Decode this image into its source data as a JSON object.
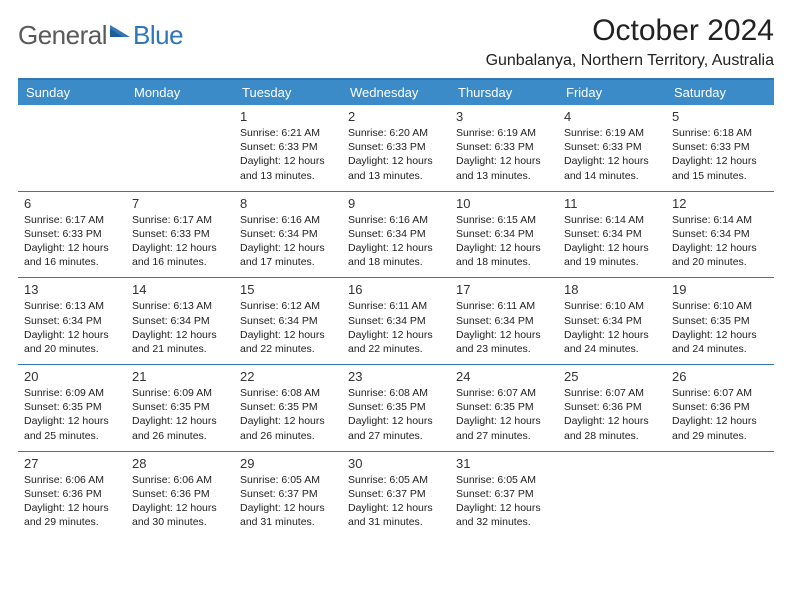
{
  "logo": {
    "general": "General",
    "blue": "Blue"
  },
  "brand_colors": {
    "header_bg": "#3b8bc9",
    "header_border": "#2f77b9",
    "row_border": "#2f77b9",
    "text": "#222222"
  },
  "title": "October 2024",
  "location": "Gunbalanya, Northern Territory, Australia",
  "weekdays": [
    "Sunday",
    "Monday",
    "Tuesday",
    "Wednesday",
    "Thursday",
    "Friday",
    "Saturday"
  ],
  "lead_blanks": 2,
  "days": [
    {
      "n": "1",
      "sunrise": "6:21 AM",
      "sunset": "6:33 PM",
      "daylight": "12 hours and 13 minutes."
    },
    {
      "n": "2",
      "sunrise": "6:20 AM",
      "sunset": "6:33 PM",
      "daylight": "12 hours and 13 minutes."
    },
    {
      "n": "3",
      "sunrise": "6:19 AM",
      "sunset": "6:33 PM",
      "daylight": "12 hours and 13 minutes."
    },
    {
      "n": "4",
      "sunrise": "6:19 AM",
      "sunset": "6:33 PM",
      "daylight": "12 hours and 14 minutes."
    },
    {
      "n": "5",
      "sunrise": "6:18 AM",
      "sunset": "6:33 PM",
      "daylight": "12 hours and 15 minutes."
    },
    {
      "n": "6",
      "sunrise": "6:17 AM",
      "sunset": "6:33 PM",
      "daylight": "12 hours and 16 minutes."
    },
    {
      "n": "7",
      "sunrise": "6:17 AM",
      "sunset": "6:33 PM",
      "daylight": "12 hours and 16 minutes."
    },
    {
      "n": "8",
      "sunrise": "6:16 AM",
      "sunset": "6:34 PM",
      "daylight": "12 hours and 17 minutes."
    },
    {
      "n": "9",
      "sunrise": "6:16 AM",
      "sunset": "6:34 PM",
      "daylight": "12 hours and 18 minutes."
    },
    {
      "n": "10",
      "sunrise": "6:15 AM",
      "sunset": "6:34 PM",
      "daylight": "12 hours and 18 minutes."
    },
    {
      "n": "11",
      "sunrise": "6:14 AM",
      "sunset": "6:34 PM",
      "daylight": "12 hours and 19 minutes."
    },
    {
      "n": "12",
      "sunrise": "6:14 AM",
      "sunset": "6:34 PM",
      "daylight": "12 hours and 20 minutes."
    },
    {
      "n": "13",
      "sunrise": "6:13 AM",
      "sunset": "6:34 PM",
      "daylight": "12 hours and 20 minutes."
    },
    {
      "n": "14",
      "sunrise": "6:13 AM",
      "sunset": "6:34 PM",
      "daylight": "12 hours and 21 minutes."
    },
    {
      "n": "15",
      "sunrise": "6:12 AM",
      "sunset": "6:34 PM",
      "daylight": "12 hours and 22 minutes."
    },
    {
      "n": "16",
      "sunrise": "6:11 AM",
      "sunset": "6:34 PM",
      "daylight": "12 hours and 22 minutes."
    },
    {
      "n": "17",
      "sunrise": "6:11 AM",
      "sunset": "6:34 PM",
      "daylight": "12 hours and 23 minutes."
    },
    {
      "n": "18",
      "sunrise": "6:10 AM",
      "sunset": "6:34 PM",
      "daylight": "12 hours and 24 minutes."
    },
    {
      "n": "19",
      "sunrise": "6:10 AM",
      "sunset": "6:35 PM",
      "daylight": "12 hours and 24 minutes."
    },
    {
      "n": "20",
      "sunrise": "6:09 AM",
      "sunset": "6:35 PM",
      "daylight": "12 hours and 25 minutes."
    },
    {
      "n": "21",
      "sunrise": "6:09 AM",
      "sunset": "6:35 PM",
      "daylight": "12 hours and 26 minutes."
    },
    {
      "n": "22",
      "sunrise": "6:08 AM",
      "sunset": "6:35 PM",
      "daylight": "12 hours and 26 minutes."
    },
    {
      "n": "23",
      "sunrise": "6:08 AM",
      "sunset": "6:35 PM",
      "daylight": "12 hours and 27 minutes."
    },
    {
      "n": "24",
      "sunrise": "6:07 AM",
      "sunset": "6:35 PM",
      "daylight": "12 hours and 27 minutes."
    },
    {
      "n": "25",
      "sunrise": "6:07 AM",
      "sunset": "6:36 PM",
      "daylight": "12 hours and 28 minutes."
    },
    {
      "n": "26",
      "sunrise": "6:07 AM",
      "sunset": "6:36 PM",
      "daylight": "12 hours and 29 minutes."
    },
    {
      "n": "27",
      "sunrise": "6:06 AM",
      "sunset": "6:36 PM",
      "daylight": "12 hours and 29 minutes."
    },
    {
      "n": "28",
      "sunrise": "6:06 AM",
      "sunset": "6:36 PM",
      "daylight": "12 hours and 30 minutes."
    },
    {
      "n": "29",
      "sunrise": "6:05 AM",
      "sunset": "6:37 PM",
      "daylight": "12 hours and 31 minutes."
    },
    {
      "n": "30",
      "sunrise": "6:05 AM",
      "sunset": "6:37 PM",
      "daylight": "12 hours and 31 minutes."
    },
    {
      "n": "31",
      "sunrise": "6:05 AM",
      "sunset": "6:37 PM",
      "daylight": "12 hours and 32 minutes."
    }
  ],
  "labels": {
    "sunrise": "Sunrise:",
    "sunset": "Sunset:",
    "daylight": "Daylight:"
  }
}
